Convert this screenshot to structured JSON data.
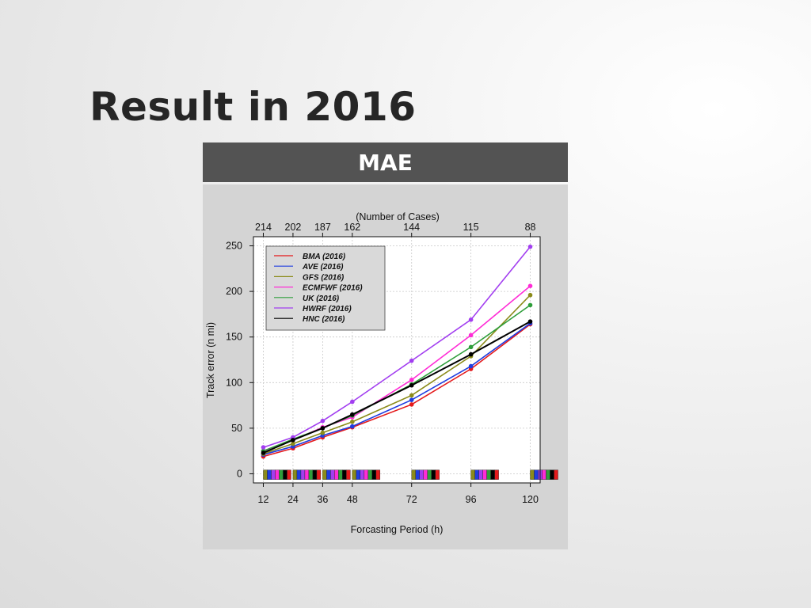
{
  "slide": {
    "title": "Result in 2016",
    "header": "MAE"
  },
  "chart_data": {
    "type": "line",
    "title": "",
    "xlabel": "Forcasting Period (h)",
    "ylabel": "Track error (n mi)",
    "top_axis_title": "(Number of Cases)",
    "x": [
      12,
      24,
      36,
      48,
      72,
      96,
      120
    ],
    "xticks": [
      "12",
      "24",
      "36",
      "48",
      "72",
      "96",
      "120"
    ],
    "yticks": [
      "0",
      "50",
      "100",
      "150",
      "200",
      "250"
    ],
    "top_ticks": [
      "214",
      "202",
      "187",
      "162",
      "144",
      "115",
      "88"
    ],
    "xlim": [
      8,
      124
    ],
    "ylim": [
      -10,
      260
    ],
    "grid": true,
    "legend_position": "top-left",
    "series": [
      {
        "name": "BMA (2016)",
        "color": "#e41a1c",
        "values": [
          19,
          28,
          40,
          51,
          76,
          115,
          164
        ]
      },
      {
        "name": "AVE (2016)",
        "color": "#1f3de0",
        "values": [
          21,
          30,
          42,
          52,
          81,
          118,
          165
        ]
      },
      {
        "name": "GFS (2016)",
        "color": "#8b8b1a",
        "values": [
          22,
          33,
          45,
          57,
          86,
          129,
          196
        ]
      },
      {
        "name": "ECMFWF (2016)",
        "color": "#ff2bd6",
        "values": [
          25,
          37,
          51,
          62,
          103,
          152,
          206
        ]
      },
      {
        "name": "UK (2016)",
        "color": "#2e9e3a",
        "values": [
          25,
          38,
          50,
          64,
          98,
          139,
          185
        ]
      },
      {
        "name": "HWRF (2016)",
        "color": "#a23ef0",
        "values": [
          29,
          40,
          58,
          79,
          124,
          169,
          249
        ]
      },
      {
        "name": "HNC (2016)",
        "color": "#000000",
        "values": [
          23,
          37,
          50,
          65,
          97,
          131,
          167
        ]
      }
    ]
  }
}
